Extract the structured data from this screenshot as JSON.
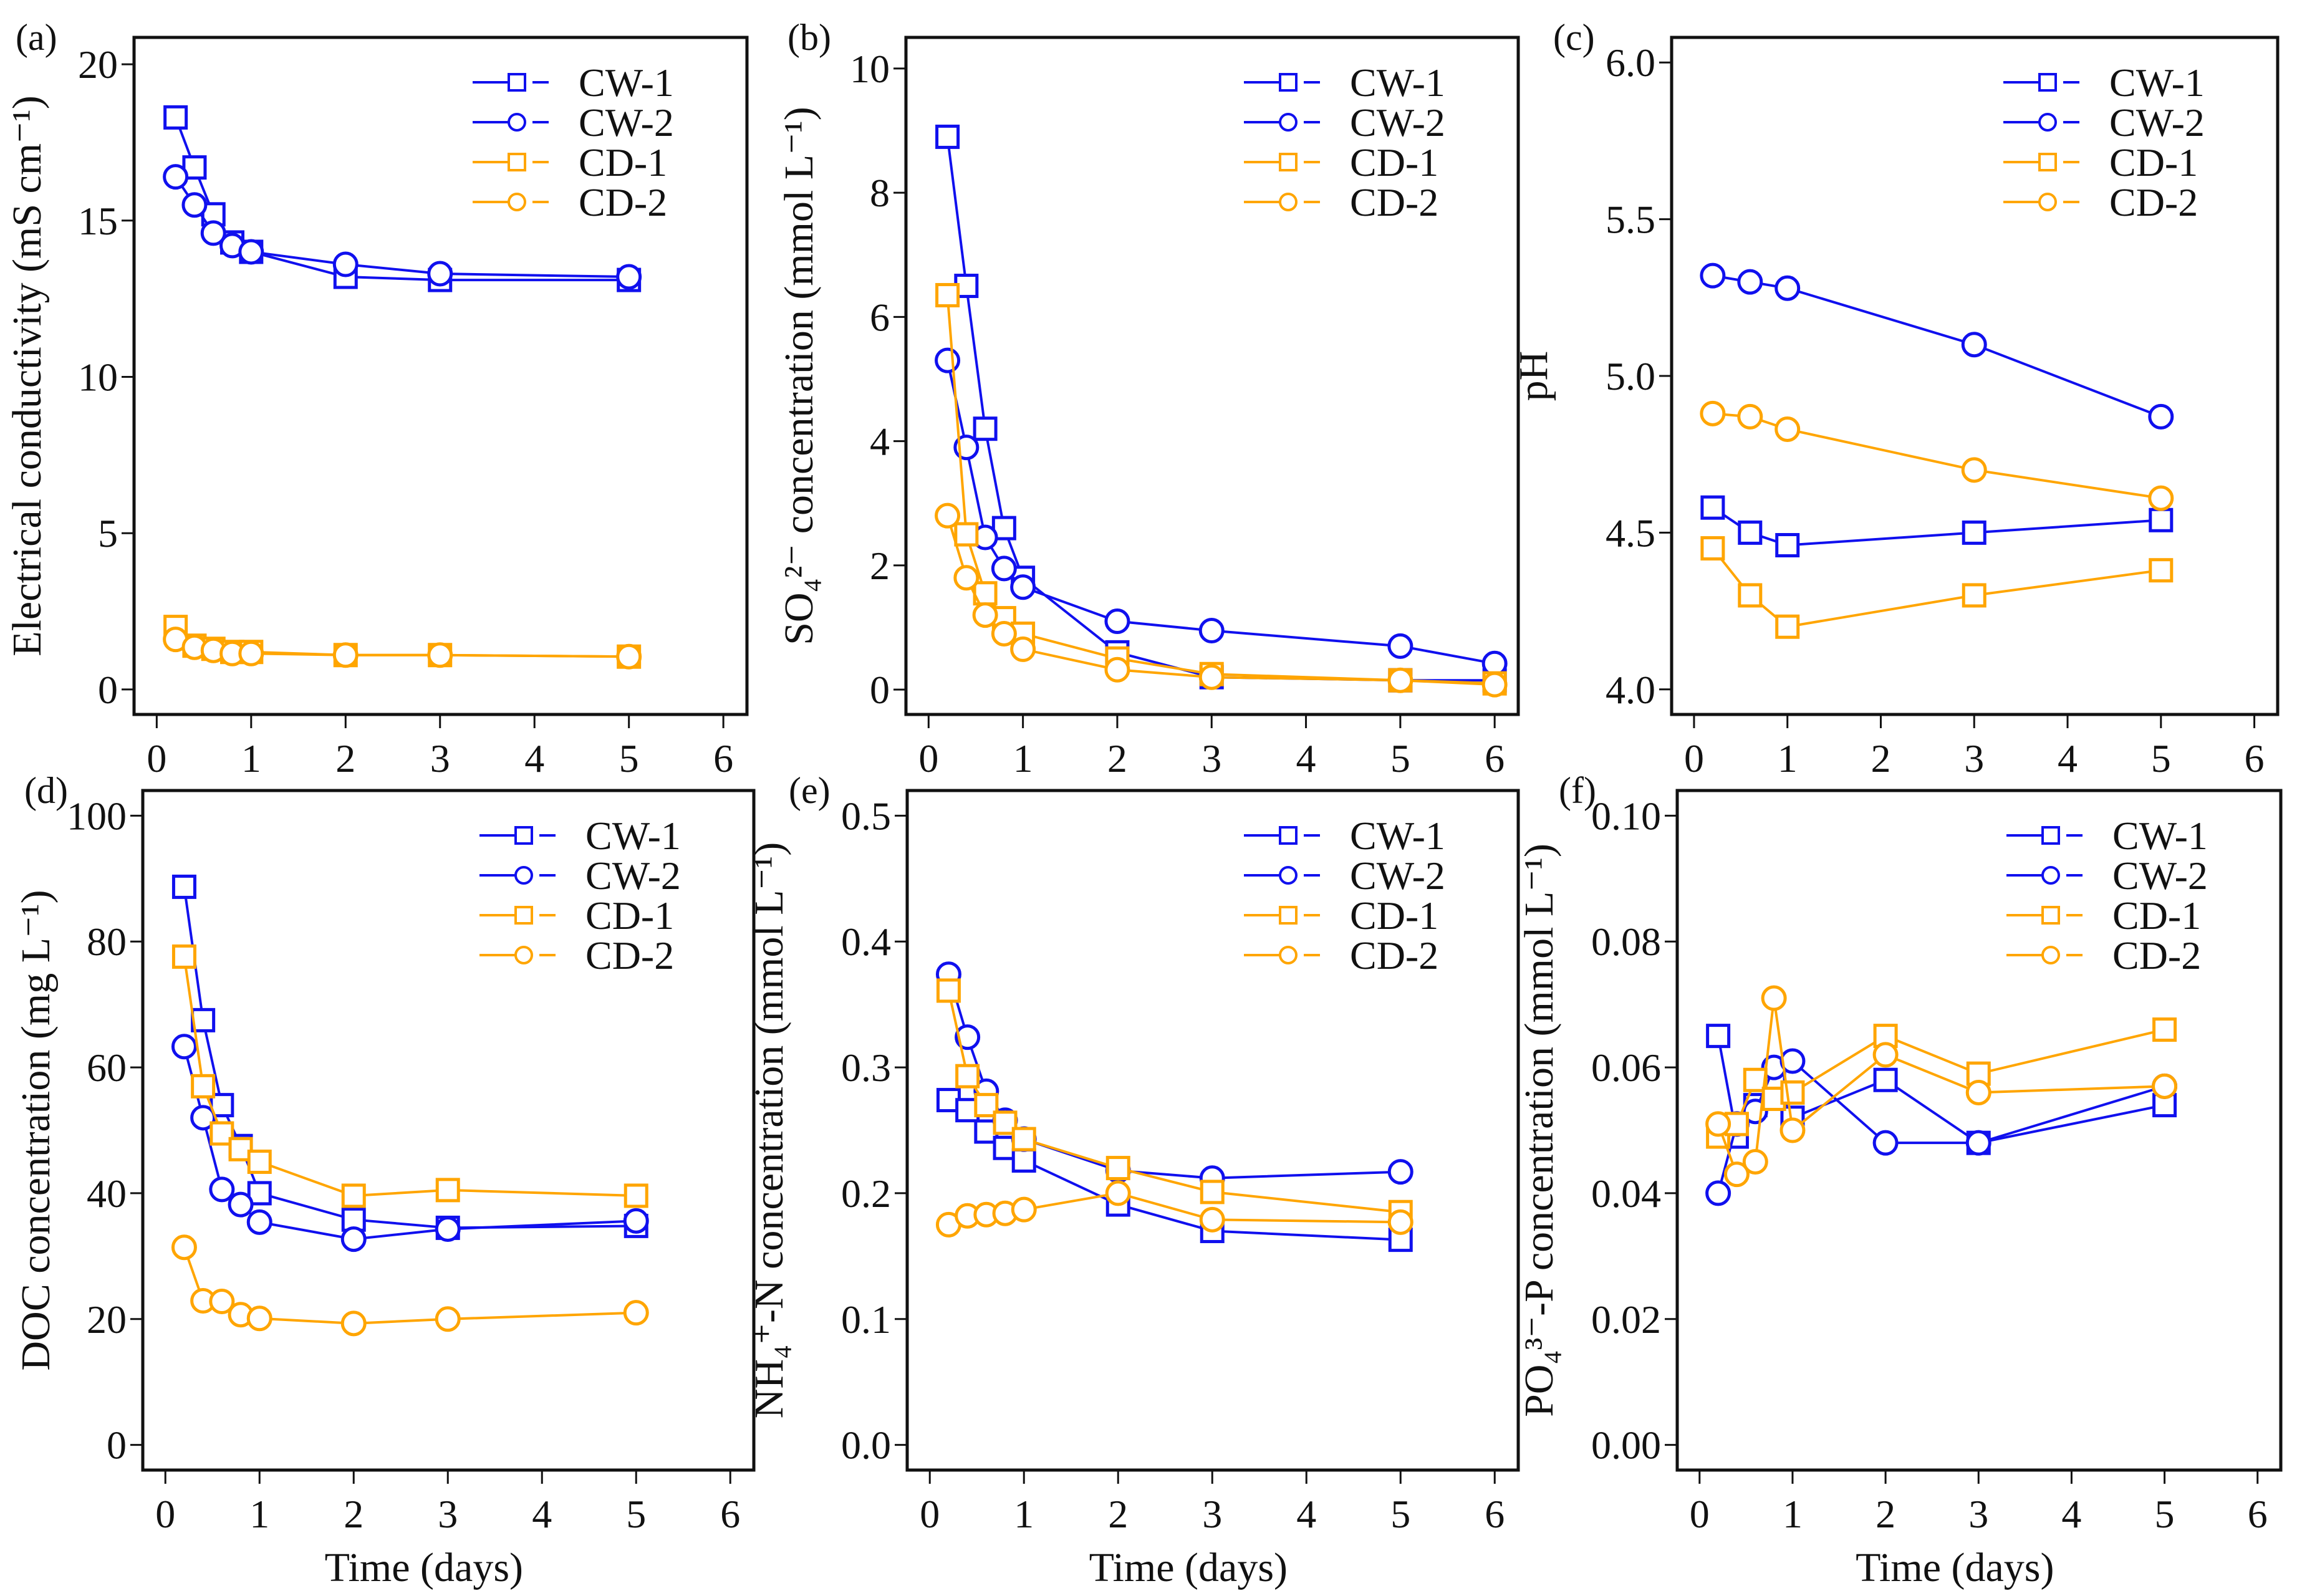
{
  "colors": {
    "CW": "#1010ee",
    "CD": "#ffa500",
    "axis": "#111111"
  },
  "chart_data": [
    {
      "type": "line",
      "panel": "(a)",
      "xlabel": "",
      "ylabel": "Electrical conductivity (mS cm⁻¹)",
      "xlim": [
        -0.24,
        6.25
      ],
      "ylim": [
        -0.8,
        20.86
      ],
      "xticks": [
        "0",
        "1",
        "2",
        "3",
        "4",
        "5",
        "6"
      ],
      "yticks": [
        "0",
        "5",
        "10",
        "15",
        "20"
      ],
      "legend": "top-right",
      "x": [
        0.2,
        0.4,
        0.6,
        0.8,
        1,
        2,
        3,
        5
      ],
      "series": [
        {
          "name": "CW-1",
          "color": "CW",
          "marker": "square",
          "values": [
            18.3,
            16.7,
            15.2,
            14.3,
            14.0,
            13.2,
            13.1,
            13.1
          ]
        },
        {
          "name": "CW-2",
          "color": "CW",
          "marker": "circle",
          "values": [
            16.4,
            15.5,
            14.6,
            14.2,
            14.0,
            13.6,
            13.3,
            13.2
          ]
        },
        {
          "name": "CD-1",
          "color": "CD",
          "marker": "square",
          "values": [
            2.0,
            1.4,
            1.3,
            1.2,
            1.2,
            1.1,
            1.1,
            1.05
          ]
        },
        {
          "name": "CD-2",
          "color": "CD",
          "marker": "circle",
          "values": [
            1.6,
            1.35,
            1.25,
            1.15,
            1.15,
            1.1,
            1.1,
            1.05
          ]
        }
      ]
    },
    {
      "type": "line",
      "panel": "(b)",
      "xlabel": "",
      "ylabel": "SO₄²⁻ concentration  (mmol L⁻¹)",
      "xlim": [
        -0.24,
        6.25
      ],
      "ylim": [
        -0.4,
        10.5
      ],
      "xticks": [
        "0",
        "1",
        "2",
        "3",
        "4",
        "5",
        "6"
      ],
      "yticks": [
        "0",
        "2",
        "4",
        "6",
        "8",
        "10"
      ],
      "legend": "top-right",
      "x": [
        0.2,
        0.4,
        0.6,
        0.8,
        1,
        2,
        3,
        5,
        6
      ],
      "series": [
        {
          "name": "CW-1",
          "color": "CW",
          "marker": "square",
          "values": [
            8.9,
            6.5,
            4.2,
            2.6,
            1.8,
            0.6,
            0.2,
            0.15,
            0.15
          ]
        },
        {
          "name": "CW-2",
          "color": "CW",
          "marker": "circle",
          "values": [
            5.3,
            3.9,
            2.45,
            1.95,
            1.65,
            1.1,
            0.95,
            0.7,
            0.42
          ]
        },
        {
          "name": "CD-1",
          "color": "CD",
          "marker": "square",
          "values": [
            6.35,
            2.5,
            1.55,
            1.15,
            0.9,
            0.5,
            0.25,
            0.15,
            0.1
          ]
        },
        {
          "name": "CD-2",
          "color": "CD",
          "marker": "circle",
          "values": [
            2.8,
            1.8,
            1.2,
            0.9,
            0.65,
            0.32,
            0.2,
            0.15,
            0.08
          ]
        }
      ]
    },
    {
      "type": "line",
      "panel": "(c)",
      "xlabel": "",
      "ylabel": "pH",
      "xlim": [
        -0.24,
        6.25
      ],
      "ylim": [
        3.92,
        6.08
      ],
      "xticks": [
        "0",
        "1",
        "2",
        "3",
        "4",
        "5",
        "6"
      ],
      "yticks": [
        "4.0",
        "4.5",
        "5.0",
        "5.5",
        "6.0"
      ],
      "legend": "top-right",
      "x": [
        0.2,
        0.6,
        1,
        3,
        5
      ],
      "series": [
        {
          "name": "CW-1",
          "color": "CW",
          "marker": "square",
          "values": [
            4.58,
            4.5,
            4.46,
            4.5,
            4.54
          ]
        },
        {
          "name": "CW-2",
          "color": "CW",
          "marker": "circle",
          "values": [
            5.32,
            5.3,
            5.28,
            5.1,
            4.87
          ]
        },
        {
          "name": "CD-1",
          "color": "CD",
          "marker": "square",
          "values": [
            4.45,
            4.3,
            4.2,
            4.3,
            4.38
          ]
        },
        {
          "name": "CD-2",
          "color": "CD",
          "marker": "circle",
          "values": [
            4.88,
            4.87,
            4.83,
            4.7,
            4.61
          ]
        }
      ]
    },
    {
      "type": "line",
      "panel": "(d)",
      "xlabel": "Time (days)",
      "ylabel": "DOC concentration (mg L⁻¹)",
      "xlim": [
        -0.24,
        6.25
      ],
      "ylim": [
        -4,
        104
      ],
      "xticks": [
        "0",
        "1",
        "2",
        "3",
        "4",
        "5",
        "6"
      ],
      "yticks": [
        "0",
        "20",
        "40",
        "60",
        "80",
        "100"
      ],
      "legend": "top-right",
      "x": [
        0.2,
        0.4,
        0.6,
        0.8,
        1,
        2,
        3,
        5
      ],
      "series": [
        {
          "name": "CW-1",
          "color": "CW",
          "marker": "square",
          "values": [
            88.7,
            67.5,
            54,
            47.5,
            40,
            35.8,
            34.5,
            34.8
          ]
        },
        {
          "name": "CW-2",
          "color": "CW",
          "marker": "circle",
          "values": [
            63.3,
            52,
            40.6,
            38.2,
            35.4,
            32.7,
            34.3,
            35.6
          ]
        },
        {
          "name": "CD-1",
          "color": "CD",
          "marker": "square",
          "values": [
            77.6,
            57,
            49.5,
            47,
            45,
            39.6,
            40.5,
            39.6
          ]
        },
        {
          "name": "CD-2",
          "color": "CD",
          "marker": "circle",
          "values": [
            31.4,
            22.9,
            22.8,
            20.7,
            20.1,
            19.3,
            20,
            21
          ]
        }
      ]
    },
    {
      "type": "line",
      "panel": "(e)",
      "xlabel": "Time (days)",
      "ylabel": "NH₄⁺-N concentration  (mmol L⁻¹)",
      "xlim": [
        -0.24,
        6.25
      ],
      "ylim": [
        -0.02,
        0.52
      ],
      "xticks": [
        "0",
        "1",
        "2",
        "3",
        "4",
        "5",
        "6"
      ],
      "yticks": [
        "0.0",
        "0.1",
        "0.2",
        "0.3",
        "0.4",
        "0.5"
      ],
      "legend": "top-right",
      "x": [
        0.2,
        0.4,
        0.6,
        0.8,
        1,
        2,
        3,
        5
      ],
      "series": [
        {
          "name": "CW-1",
          "color": "CW",
          "marker": "square",
          "values": [
            0.274,
            0.266,
            0.249,
            0.236,
            0.226,
            0.191,
            0.17,
            0.163
          ]
        },
        {
          "name": "CW-2",
          "color": "CW",
          "marker": "circle",
          "values": [
            0.374,
            0.324,
            0.281,
            0.258,
            0.243,
            0.218,
            0.212,
            0.217
          ]
        },
        {
          "name": "CD-1",
          "color": "CD",
          "marker": "square",
          "values": [
            0.361,
            0.293,
            0.27,
            0.256,
            0.243,
            0.22,
            0.201,
            0.185
          ]
        },
        {
          "name": "CD-2",
          "color": "CD",
          "marker": "circle",
          "values": [
            0.175,
            0.182,
            0.183,
            0.184,
            0.187,
            0.2,
            0.179,
            0.177
          ]
        }
      ]
    },
    {
      "type": "line",
      "panel": "(f)",
      "xlabel": "Time (days)",
      "ylabel": "PO₄³⁻-P concentration  (mmol L⁻¹)",
      "xlim": [
        -0.24,
        6.25
      ],
      "ylim": [
        -0.004,
        0.104
      ],
      "xticks": [
        "0",
        "1",
        "2",
        "3",
        "4",
        "5",
        "6"
      ],
      "yticks": [
        "0.00",
        "0.02",
        "0.04",
        "0.06",
        "0.08",
        "0.10"
      ],
      "legend": "top-right",
      "x": [
        0.2,
        0.4,
        0.6,
        0.8,
        1,
        2,
        3,
        5
      ],
      "series": [
        {
          "name": "CW-1",
          "color": "CW",
          "marker": "square",
          "values": [
            0.065,
            0.049,
            0.054,
            0.058,
            0.052,
            0.058,
            0.048,
            0.054
          ]
        },
        {
          "name": "CW-2",
          "color": "CW",
          "marker": "circle",
          "values": [
            0.04,
            0.051,
            0.053,
            0.06,
            0.061,
            0.048,
            0.048,
            0.057
          ]
        },
        {
          "name": "CD-1",
          "color": "CD",
          "marker": "square",
          "values": [
            0.049,
            0.051,
            0.058,
            0.055,
            0.056,
            0.065,
            0.059,
            0.066
          ]
        },
        {
          "name": "CD-2",
          "color": "CD",
          "marker": "circle",
          "values": [
            0.051,
            0.043,
            0.045,
            0.071,
            0.05,
            0.062,
            0.056,
            0.057
          ]
        }
      ]
    }
  ]
}
